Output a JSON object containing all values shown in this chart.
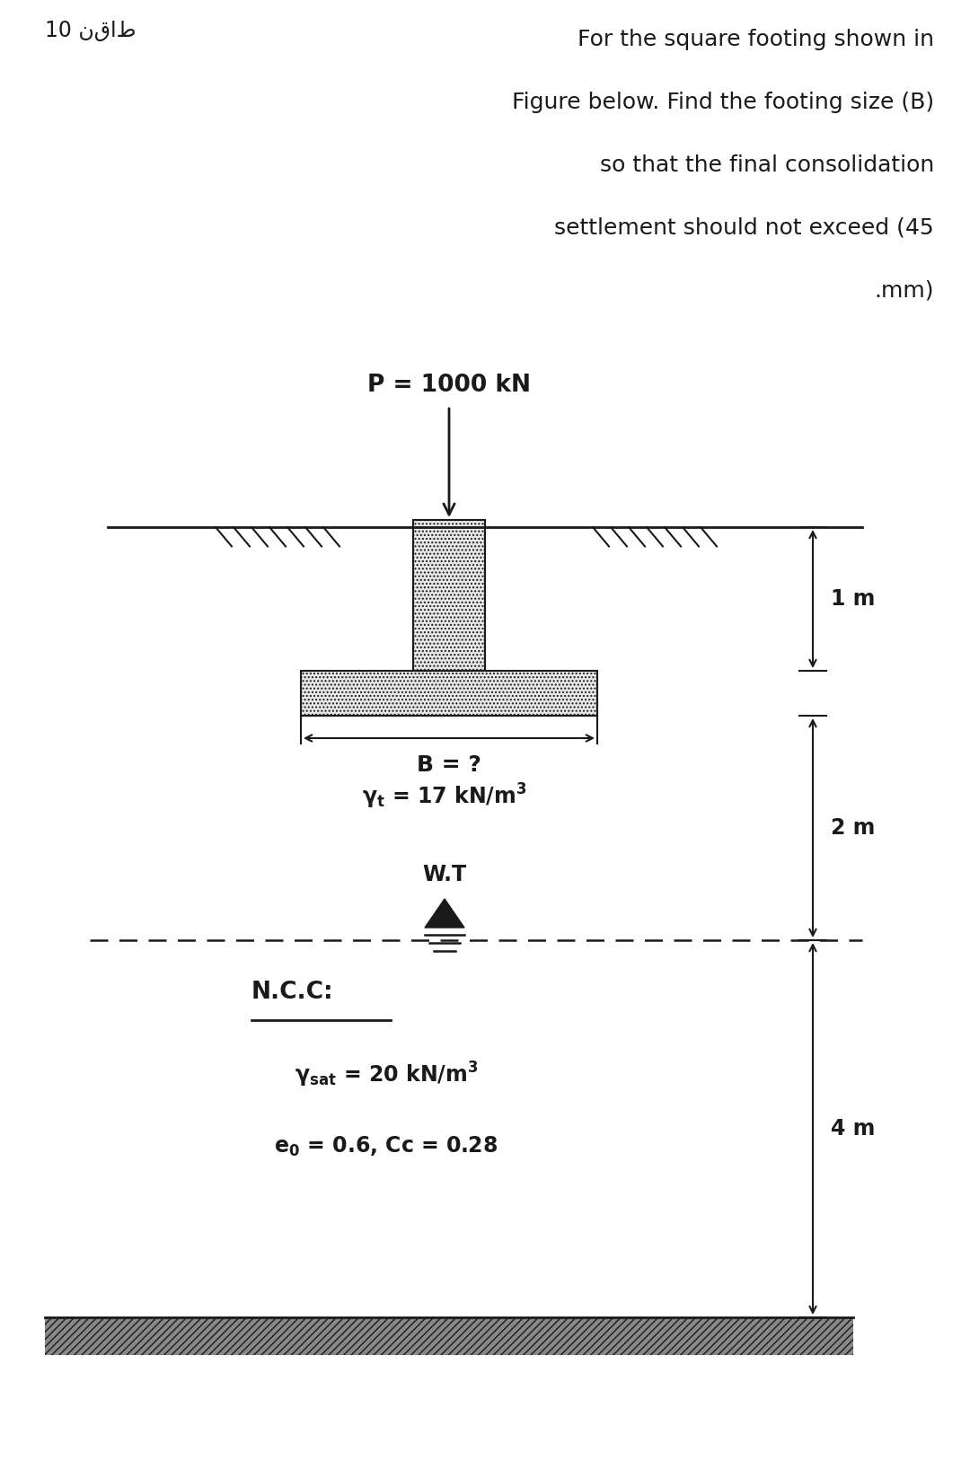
{
  "bg_color": "#ffffff",
  "text_color": "#1a1a1a",
  "header_text_line1": "For the square footing shown in",
  "header_text_line2": "Figure below. Find the footing size (B)",
  "header_text_line3": "so that the final consolidation",
  "header_text_line4": "settlement should not exceed (45",
  "header_text_line5": ".mm)",
  "header_points": "10 نقاط",
  "load_label": "P = 1000 kN",
  "B_label": "B = ?",
  "WT_label": "W.T",
  "NCC_label": "N.C.C:",
  "dim_1m": "1 m",
  "dim_2m": "2 m",
  "dim_4m": "4 m",
  "fig_width": 10.8,
  "fig_height": 16.37,
  "dpi": 100
}
